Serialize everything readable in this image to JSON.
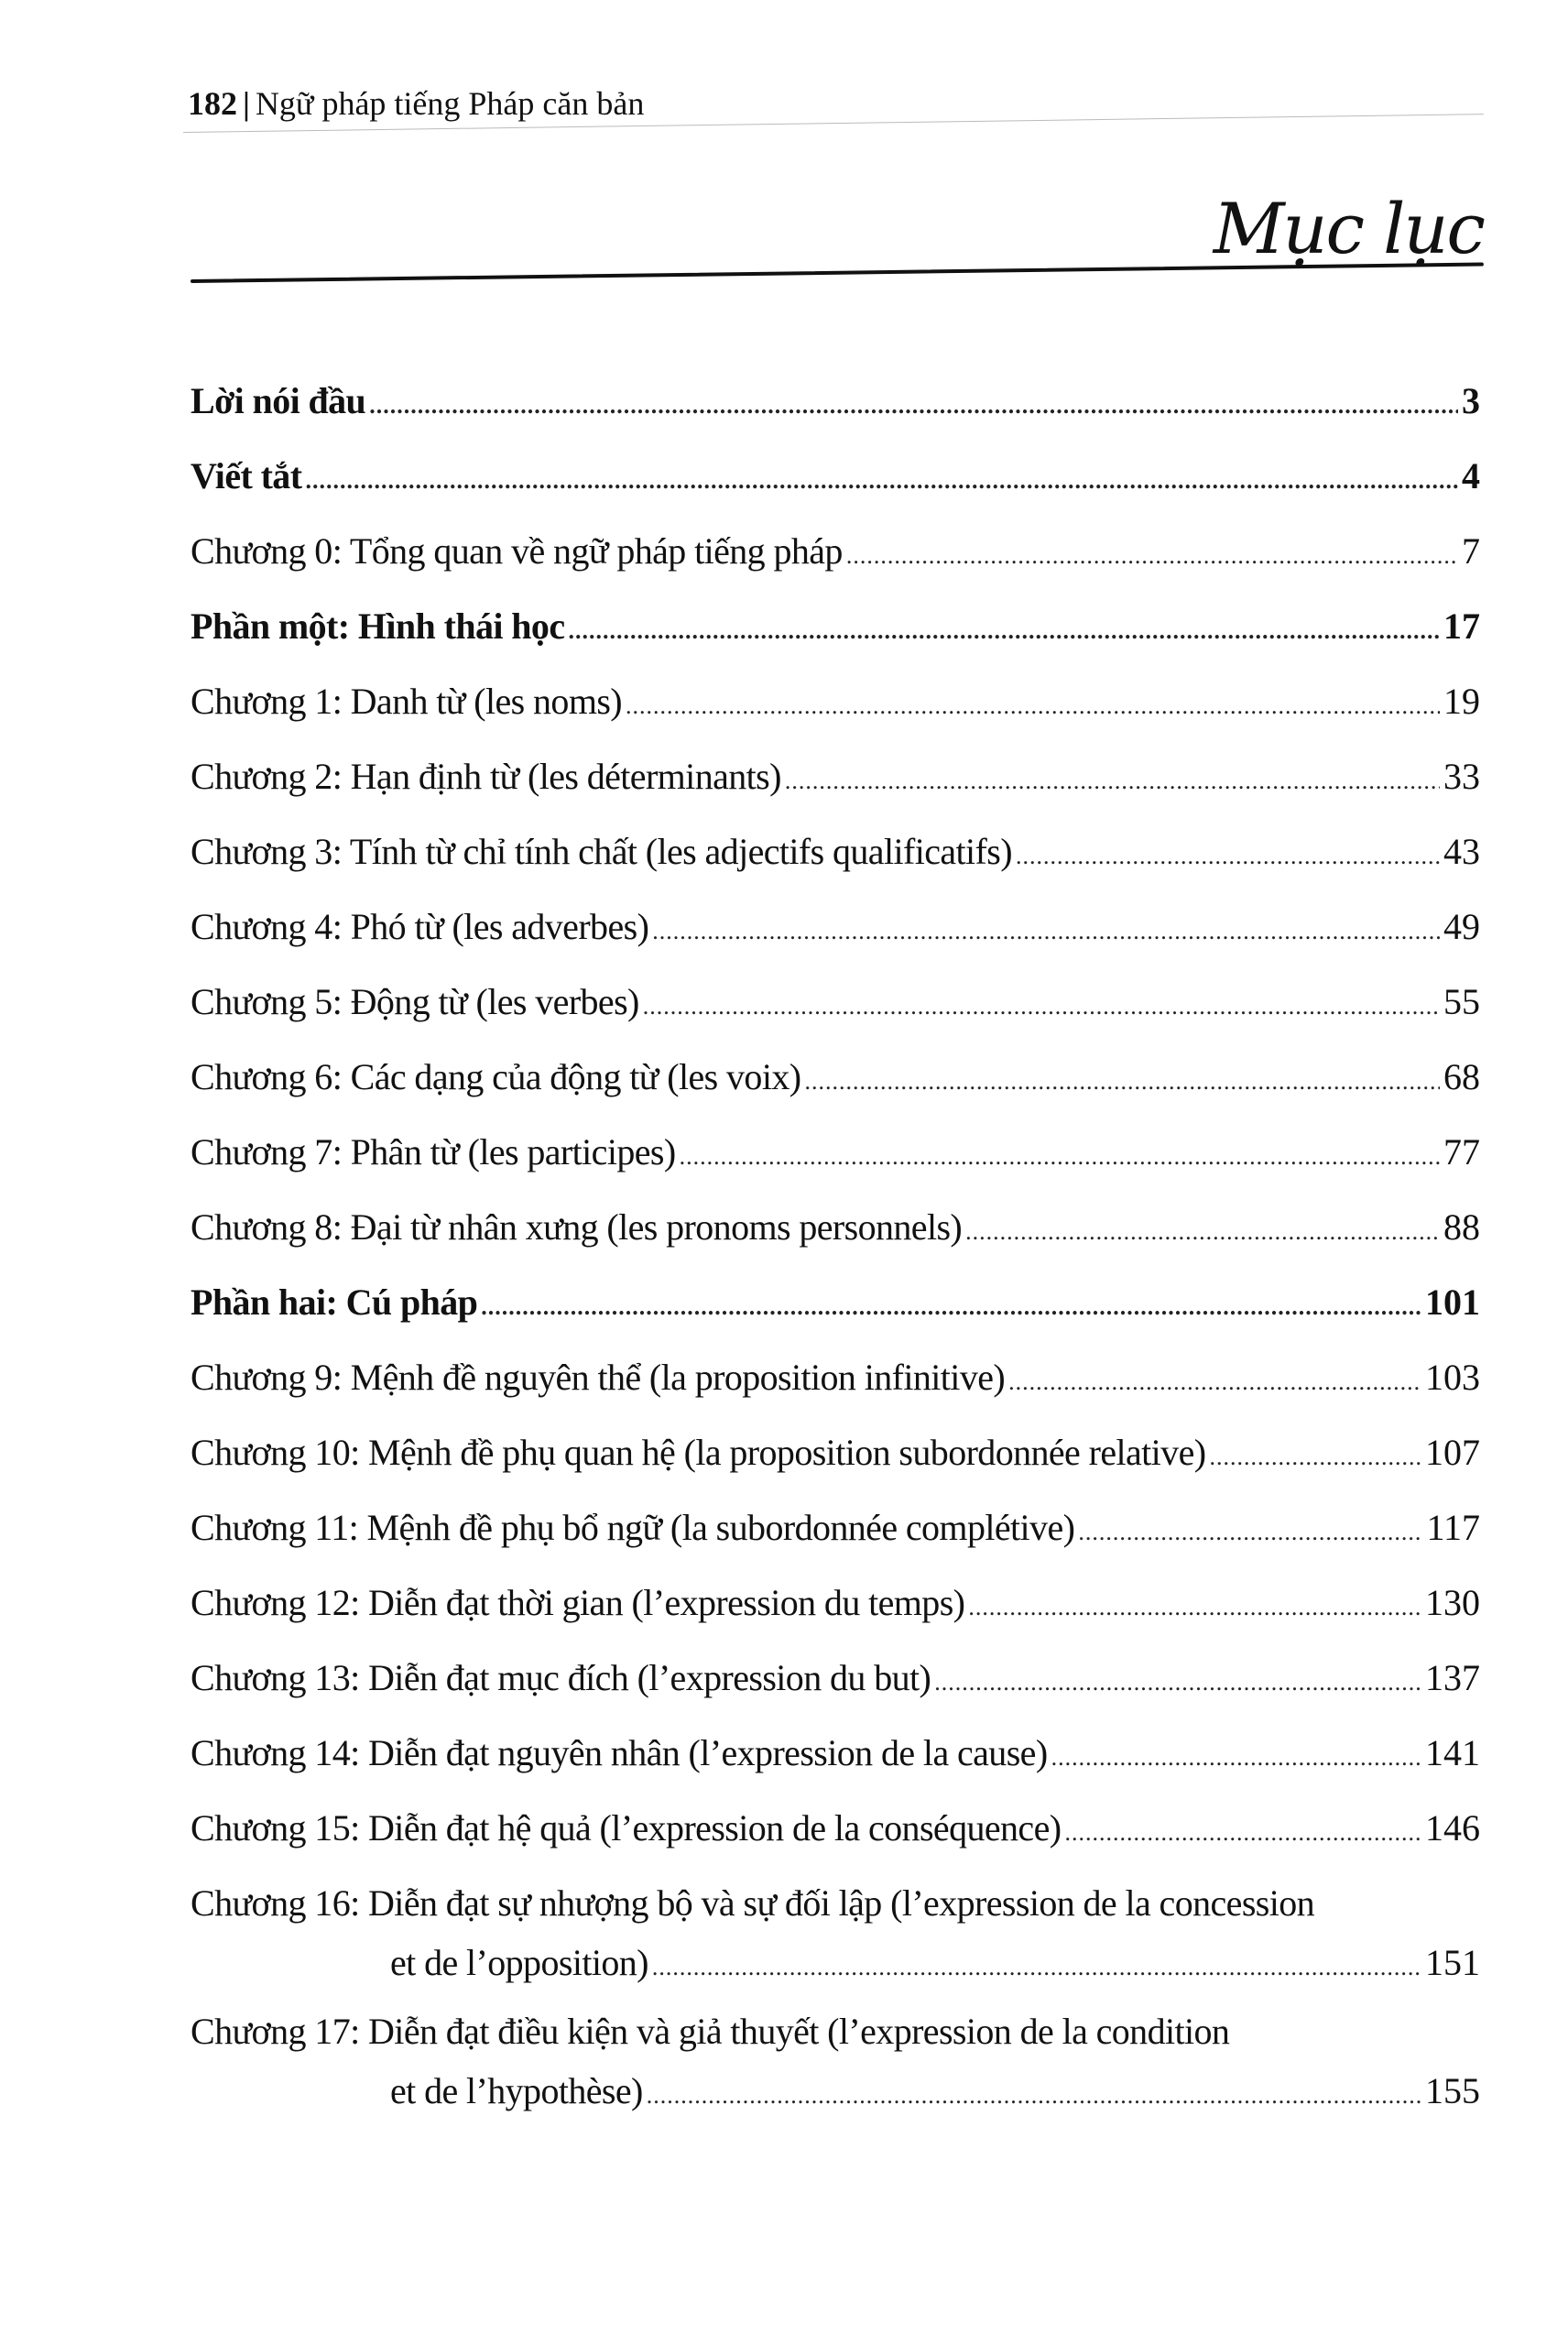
{
  "header": {
    "page_number": "182",
    "book_title": "Ngữ pháp tiếng Pháp căn bản"
  },
  "title": "Mục lục",
  "entries": [
    {
      "label": "Lời nói đầu",
      "page": "3",
      "bold": true
    },
    {
      "label": "Viết tắt",
      "page": "4",
      "bold": true
    },
    {
      "label": "Chương 0: Tổng quan về ngữ pháp tiếng pháp",
      "page": "7"
    },
    {
      "label": "Phần một: Hình thái học",
      "page": "17",
      "bold": true
    },
    {
      "label": "Chương 1: Danh từ (les noms)",
      "page": "19"
    },
    {
      "label": "Chương 2: Hạn định từ (les déterminants)",
      "page": "33"
    },
    {
      "label": "Chương 3: Tính từ chỉ tính chất (les adjectifs qualificatifs)",
      "page": "43"
    },
    {
      "label": "Chương 4: Phó từ (les adverbes)",
      "page": "49"
    },
    {
      "label": "Chương 5: Động từ (les verbes)",
      "page": "55"
    },
    {
      "label": "Chương 6: Các dạng của động từ (les voix)",
      "page": "68"
    },
    {
      "label": "Chương 7: Phân từ (les participes)",
      "page": "77"
    },
    {
      "label": "Chương 8: Đại từ nhân xưng (les pronoms personnels)",
      "page": "88"
    },
    {
      "label": "Phần hai: Cú pháp",
      "page": "101",
      "bold": true
    },
    {
      "label": "Chương 9: Mệnh đề nguyên thể (la proposition infinitive)",
      "page": "103"
    },
    {
      "label": "Chương 10: Mệnh đề phụ quan hệ (la proposition subordonnée relative)",
      "page": "107"
    },
    {
      "label": "Chương 11: Mệnh đề phụ bổ ngữ (la subordonnée complétive)",
      "page": "117"
    },
    {
      "label": "Chương 12: Diễn đạt thời gian (l’expression du temps)",
      "page": "130"
    },
    {
      "label": "Chương 13: Diễn đạt mục đích (l’expression du but)",
      "page": "137"
    },
    {
      "label": "Chương 14: Diễn đạt nguyên nhân (l’expression de la cause)",
      "page": "141"
    },
    {
      "label": "Chương 15: Diễn đạt hệ quả (l’expression de la conséquence)",
      "page": "146"
    },
    {
      "label": "Chương 16: Diễn đạt sự nhượng bộ và sự đối lập (l’expression de la concession",
      "continuation": "et de l’opposition)",
      "page": "151"
    },
    {
      "label": "Chương 17: Diễn đạt điều kiện và giả thuyết (l’expression de la condition",
      "continuation": "et de l’hypothèse)",
      "page": "155"
    }
  ]
}
